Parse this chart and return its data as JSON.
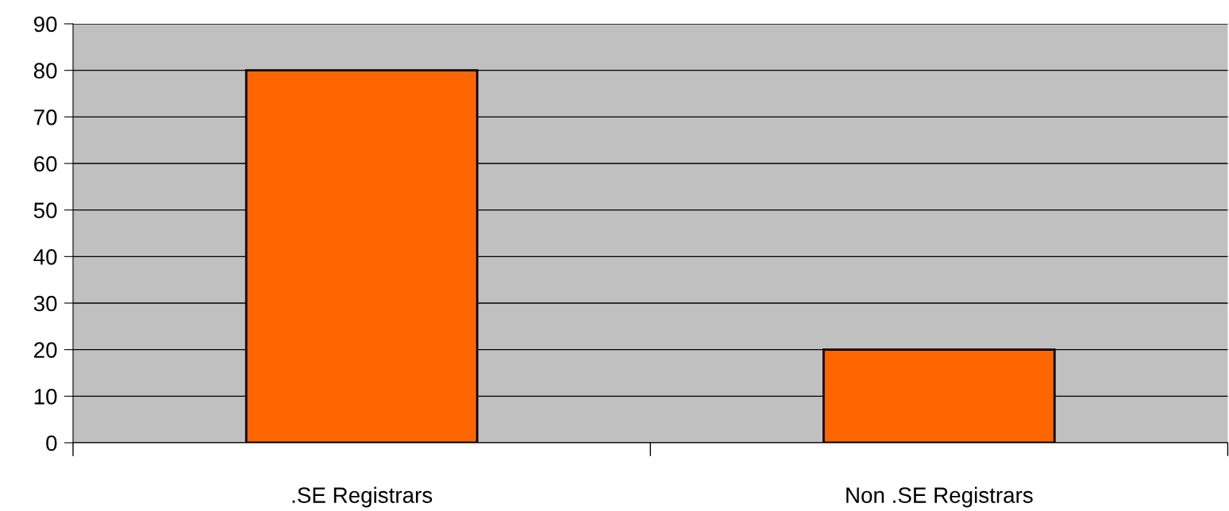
{
  "chart_data": {
    "type": "bar",
    "categories": [
      ".SE Registrars",
      "Non .SE Registrars"
    ],
    "values": [
      80,
      20
    ],
    "color": "#ff6600",
    "ylim": [
      0,
      90
    ],
    "yticks": [
      0,
      10,
      20,
      30,
      40,
      50,
      60,
      70,
      80,
      90
    ],
    "grid": "y"
  }
}
